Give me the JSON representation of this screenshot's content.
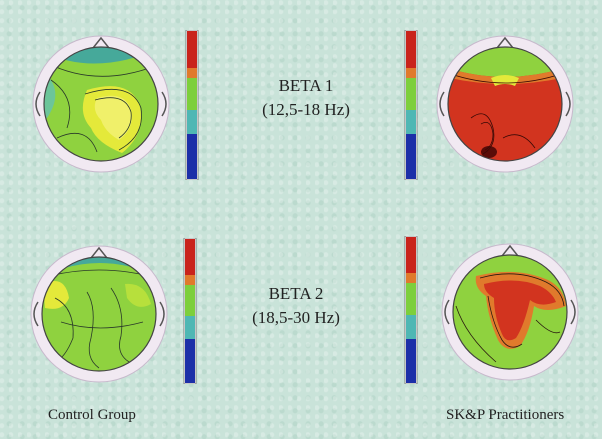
{
  "bands": [
    {
      "name": "BETA 1",
      "range": "(12,5-18 Hz)"
    },
    {
      "name": "BETA 2",
      "range": "(18,5-30 Hz)"
    }
  ],
  "groups": {
    "left": "Control Group",
    "right": "SK&P Practitioners"
  },
  "colors": {
    "background": "#c9e3d9",
    "scale": [
      "#1c2fa8",
      "#3f6fd0",
      "#4fb7b4",
      "#7dcf3c",
      "#cfe83a",
      "#e9e23a",
      "#e07a2c",
      "#c9231b"
    ],
    "map_green": "#8fd23f",
    "map_yellow": "#e4e93a",
    "map_red": "#d2341f",
    "map_teal": "#46a99a",
    "ring": "#efe6f0"
  },
  "maps": [
    {
      "id": "beta1-control",
      "dominant": "green-yellow"
    },
    {
      "id": "beta1-skp",
      "dominant": "red"
    },
    {
      "id": "beta2-control",
      "dominant": "green"
    },
    {
      "id": "beta2-skp",
      "dominant": "green-red"
    }
  ]
}
